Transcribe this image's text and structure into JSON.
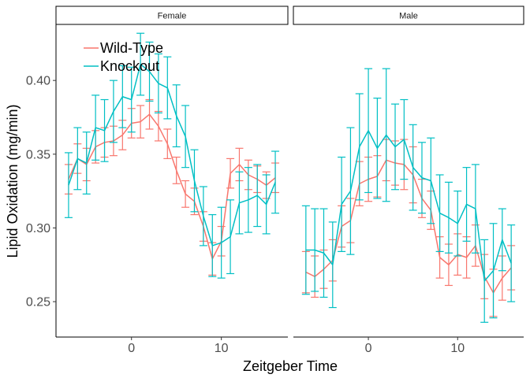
{
  "chart_data": {
    "type": "line",
    "xlabel": "Zeitgeber Time",
    "ylabel": "Lipid Oxidation (mg/min)",
    "xlim": [
      -8.4,
      17.4
    ],
    "ylim": [
      0.226,
      0.438
    ],
    "x_ticks": [
      0,
      10
    ],
    "y_ticks": [
      0.25,
      0.3,
      0.35,
      0.4
    ],
    "y_tick_labels": [
      "0.25",
      "0.30",
      "0.35",
      "0.40"
    ],
    "grid": false,
    "legend": {
      "position": "top-left",
      "entries": [
        "Wild-Type",
        "Knockout"
      ]
    },
    "x": [
      -7,
      -6,
      -5,
      -4,
      -3,
      -2,
      -1,
      0,
      1,
      2,
      3,
      4,
      5,
      6,
      7,
      8,
      9,
      10,
      11,
      12,
      13,
      14,
      15,
      16
    ],
    "panels": [
      {
        "strip": "Female",
        "series": [
          {
            "name": "Wild-Type",
            "color": "#F8766D",
            "values": [
              0.333,
              0.347,
              0.343,
              0.355,
              0.358,
              0.359,
              0.363,
              0.371,
              0.372,
              0.377,
              0.369,
              0.357,
              0.339,
              0.323,
              0.318,
              0.301,
              0.279,
              0.291,
              0.337,
              0.343,
              0.336,
              0.333,
              0.329,
              0.334
            ],
            "err": [
              0.01,
              0.01,
              0.011,
              0.011,
              0.01,
              0.01,
              0.01,
              0.01,
              0.011,
              0.01,
              0.01,
              0.01,
              0.009,
              0.009,
              0.009,
              0.01,
              0.011,
              0.01,
              0.01,
              0.011,
              0.01,
              0.009,
              0.009,
              0.01
            ]
          },
          {
            "name": "Knockout",
            "color": "#00BFC4",
            "values": [
              0.329,
              0.347,
              0.344,
              0.368,
              0.366,
              0.379,
              0.389,
              0.387,
              0.411,
              0.406,
              0.398,
              0.395,
              0.376,
              0.362,
              0.332,
              0.308,
              0.288,
              0.29,
              0.294,
              0.317,
              0.319,
              0.322,
              0.316,
              0.331
            ],
            "err": [
              0.022,
              0.021,
              0.021,
              0.022,
              0.021,
              0.021,
              0.021,
              0.022,
              0.021,
              0.02,
              0.02,
              0.021,
              0.021,
              0.021,
              0.021,
              0.02,
              0.021,
              0.024,
              0.025,
              0.021,
              0.022,
              0.021,
              0.02,
              0.021
            ]
          }
        ]
      },
      {
        "strip": "Male",
        "series": [
          {
            "name": "Wild-Type",
            "color": "#F8766D",
            "values": [
              0.27,
              0.267,
              0.272,
              0.278,
              0.301,
              0.305,
              0.33,
              0.333,
              0.335,
              0.346,
              0.344,
              0.343,
              0.336,
              0.32,
              0.312,
              0.28,
              0.275,
              0.282,
              0.28,
              0.288,
              0.267,
              0.256,
              0.266,
              0.273
            ],
            "err": [
              0.014,
              0.014,
              0.013,
              0.014,
              0.014,
              0.015,
              0.015,
              0.015,
              0.014,
              0.014,
              0.015,
              0.017,
              0.019,
              0.013,
              0.013,
              0.014,
              0.014,
              0.014,
              0.014,
              0.014,
              0.015,
              0.016,
              0.015,
              0.015
            ]
          },
          {
            "name": "Knockout",
            "color": "#00BFC4",
            "values": [
              0.285,
              0.285,
              0.283,
              0.275,
              0.316,
              0.325,
              0.355,
              0.366,
              0.354,
              0.363,
              0.355,
              0.36,
              0.341,
              0.334,
              0.332,
              0.31,
              0.307,
              0.303,
              0.316,
              0.313,
              0.264,
              0.271,
              0.292,
              0.276
            ],
            "err": [
              0.03,
              0.028,
              0.03,
              0.029,
              0.032,
              0.043,
              0.036,
              0.042,
              0.034,
              0.045,
              0.029,
              0.027,
              0.029,
              0.024,
              0.029,
              0.026,
              0.024,
              0.022,
              0.025,
              0.03,
              0.028,
              0.032,
              0.021,
              0.026
            ]
          }
        ]
      }
    ]
  }
}
